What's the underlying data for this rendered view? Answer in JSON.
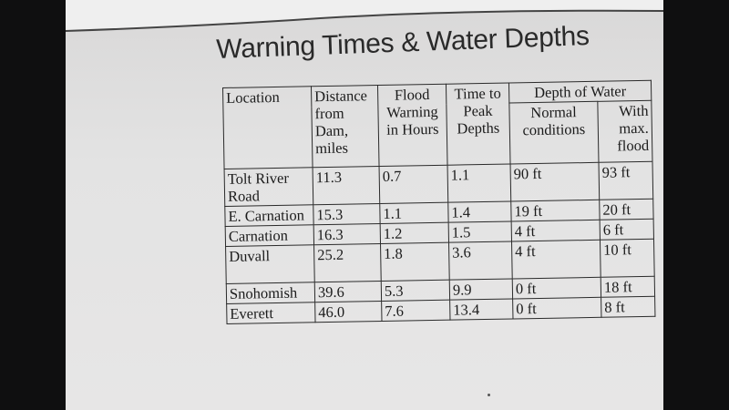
{
  "title": "Warning Times & Water Depths",
  "headers": {
    "location": "Location",
    "distance": "Distance from Dam, miles",
    "flood_warning": "Flood Warning in Hours",
    "time_to_peak": "Time to Peak Depths",
    "depth_of_water": "Depth of Water",
    "normal": "Normal conditions",
    "with_max_flood": "With max. flood"
  },
  "rows": [
    {
      "location": "Tolt River Road",
      "distance": "11.3",
      "warning": "0.7",
      "peak": "1.1",
      "normal": "90 ft",
      "max": "93 ft"
    },
    {
      "location": "E. Carnation",
      "distance": "15.3",
      "warning": "1.1",
      "peak": "1.4",
      "normal": "19 ft",
      "max": "20 ft"
    },
    {
      "location": "Carnation",
      "distance": "16.3",
      "warning": "1.2",
      "peak": "1.5",
      "normal": "4 ft",
      "max": "6 ft"
    },
    {
      "location": "Duvall",
      "distance": "25.2",
      "warning": "1.8",
      "peak": "3.6",
      "normal": "4 ft",
      "max": "10 ft"
    },
    {
      "location": "Snohomish",
      "distance": "39.6",
      "warning": "5.3",
      "peak": "9.9",
      "normal": "0 ft",
      "max": "18 ft"
    },
    {
      "location": "Everett",
      "distance": "46.0",
      "warning": "7.6",
      "peak": "13.4",
      "normal": "0 ft",
      "max": "8 ft"
    }
  ]
}
